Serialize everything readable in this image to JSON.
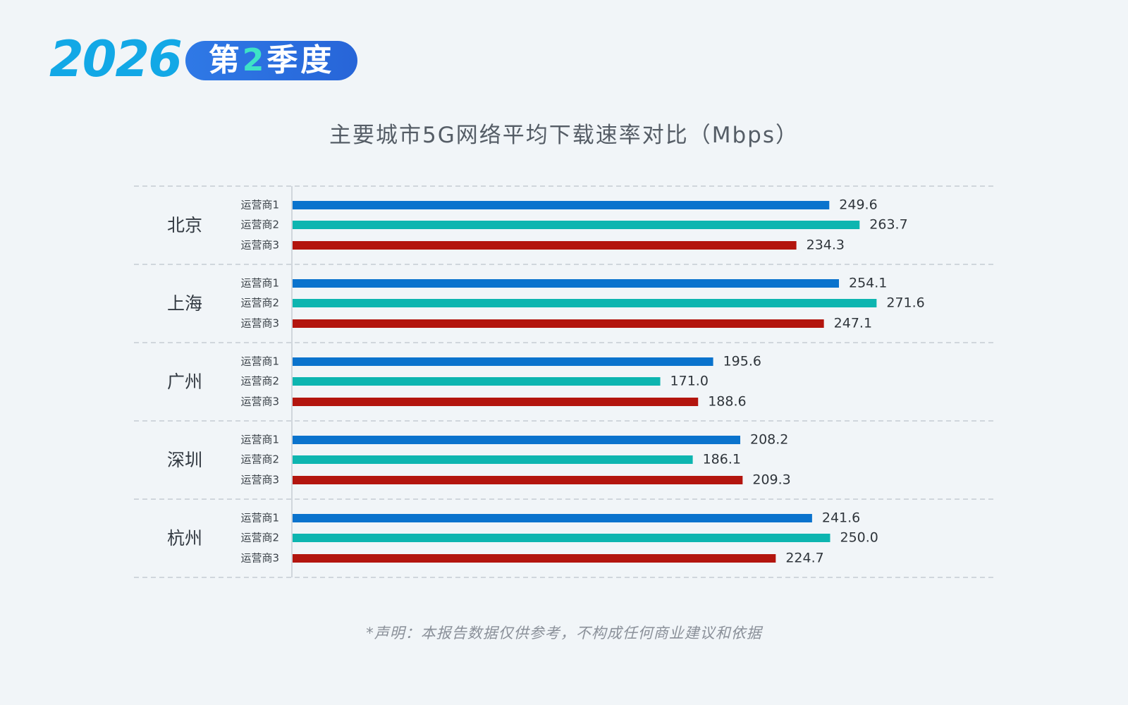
{
  "header": {
    "year": "2026",
    "quarter_prefix": "第",
    "quarter_number": "2",
    "quarter_suffix": "季度"
  },
  "colors": {
    "year": "#12a8e6",
    "pill": "#2b6fe0",
    "pill_number": "#3ee3c6",
    "operator1": "#0a73cd",
    "operator2": "#0db5b0",
    "operator3": "#b3150e"
  },
  "chart_data": {
    "type": "bar",
    "orientation": "horizontal",
    "title": "主要城市5G网络平均下载速率对比（Mbps）",
    "categories": [
      "北京",
      "上海",
      "广州",
      "深圳",
      "杭州"
    ],
    "series": [
      {
        "name": "运营商1",
        "values": [
          249.6,
          254.1,
          195.6,
          208.2,
          241.6
        ]
      },
      {
        "name": "运营商2",
        "values": [
          263.7,
          271.6,
          171.0,
          186.1,
          250.0
        ]
      },
      {
        "name": "运营商3",
        "values": [
          234.3,
          247.1,
          188.6,
          209.3,
          224.7
        ]
      }
    ],
    "grid": "dashed separators between categories",
    "legend": "none",
    "data_labels": true
  },
  "footer": {
    "disclaimer": "*声明：本报告数据仅供参考，不构成任何商业建议和依据"
  }
}
